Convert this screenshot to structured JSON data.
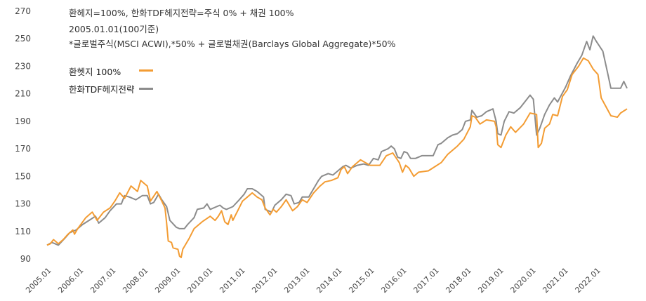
{
  "notes": [
    "환헤지=100%, 한화TDF헤지전략=주식 0% + 채권 100%",
    "2005.01.01(100기준)",
    "*글로벌주식(MSCI ACWI),*50% + 글로벌채권(Barclays Global Aggregate)*50%"
  ],
  "legend": [
    {
      "label": "환헷지 100%",
      "color": "#f39c33"
    },
    {
      "label": "한화TDF헤지전략",
      "color": "#8c8c8c"
    }
  ],
  "chart_data": {
    "type": "line",
    "title": "",
    "xlabel": "",
    "ylabel": "",
    "ylim": [
      90,
      270
    ],
    "yticks": [
      90,
      110,
      130,
      150,
      170,
      190,
      210,
      230,
      250,
      270
    ],
    "xlim": [
      2005.0,
      2022.95
    ],
    "xticks": [
      "2005.01",
      "2006.01",
      "2007.01",
      "2008.01",
      "2009.01",
      "2010.01",
      "2011.01",
      "2012.01",
      "2013.01",
      "2014.01",
      "2015.01",
      "2016.01",
      "2017.01",
      "2018.01",
      "2019.01",
      "2020.01",
      "2021.01",
      "2022.01"
    ],
    "grid": false,
    "legend_position": "top-left",
    "series": [
      {
        "name": "환헷지 100%",
        "color": "#f39c33",
        "points": [
          [
            2005.0,
            100
          ],
          [
            2005.1,
            101
          ],
          [
            2005.2,
            104
          ],
          [
            2005.35,
            101
          ],
          [
            2005.5,
            104
          ],
          [
            2005.65,
            108
          ],
          [
            2005.8,
            111
          ],
          [
            2005.85,
            108
          ],
          [
            2005.95,
            112
          ],
          [
            2006.2,
            120
          ],
          [
            2006.4,
            124
          ],
          [
            2006.55,
            118
          ],
          [
            2006.75,
            124
          ],
          [
            2006.95,
            127
          ],
          [
            2007.1,
            132
          ],
          [
            2007.25,
            138
          ],
          [
            2007.4,
            134
          ],
          [
            2007.6,
            143
          ],
          [
            2007.8,
            139
          ],
          [
            2007.9,
            147
          ],
          [
            2008.1,
            143
          ],
          [
            2008.2,
            132
          ],
          [
            2008.4,
            139
          ],
          [
            2008.55,
            132
          ],
          [
            2008.65,
            127
          ],
          [
            2008.7,
            116
          ],
          [
            2008.75,
            103
          ],
          [
            2008.85,
            102
          ],
          [
            2008.9,
            98
          ],
          [
            2009.05,
            97
          ],
          [
            2009.1,
            92
          ],
          [
            2009.15,
            91
          ],
          [
            2009.2,
            97
          ],
          [
            2009.4,
            105
          ],
          [
            2009.55,
            112
          ],
          [
            2009.8,
            117
          ],
          [
            2010.05,
            121
          ],
          [
            2010.2,
            118
          ],
          [
            2010.3,
            121
          ],
          [
            2010.4,
            125
          ],
          [
            2010.5,
            117
          ],
          [
            2010.6,
            115
          ],
          [
            2010.7,
            122
          ],
          [
            2010.75,
            118
          ],
          [
            2010.9,
            125
          ],
          [
            2011.05,
            132
          ],
          [
            2011.2,
            135
          ],
          [
            2011.35,
            138
          ],
          [
            2011.5,
            135
          ],
          [
            2011.65,
            133
          ],
          [
            2011.75,
            127
          ],
          [
            2011.9,
            122
          ],
          [
            2012.0,
            126
          ],
          [
            2012.1,
            124
          ],
          [
            2012.25,
            128
          ],
          [
            2012.4,
            133
          ],
          [
            2012.6,
            125
          ],
          [
            2012.75,
            128
          ],
          [
            2012.9,
            133
          ],
          [
            2013.05,
            131
          ],
          [
            2013.25,
            138
          ],
          [
            2013.45,
            143
          ],
          [
            2013.6,
            146
          ],
          [
            2013.8,
            147
          ],
          [
            2014.0,
            149
          ],
          [
            2014.1,
            155
          ],
          [
            2014.2,
            157
          ],
          [
            2014.3,
            152
          ],
          [
            2014.45,
            157
          ],
          [
            2014.6,
            160
          ],
          [
            2014.7,
            162
          ],
          [
            2014.85,
            160
          ],
          [
            2015.0,
            158
          ],
          [
            2015.3,
            158
          ],
          [
            2015.5,
            165
          ],
          [
            2015.7,
            167
          ],
          [
            2015.9,
            160
          ],
          [
            2016.0,
            153
          ],
          [
            2016.1,
            158
          ],
          [
            2016.2,
            156
          ],
          [
            2016.35,
            150
          ],
          [
            2016.5,
            153
          ],
          [
            2016.8,
            154
          ],
          [
            2017.0,
            157
          ],
          [
            2017.2,
            160
          ],
          [
            2017.4,
            166
          ],
          [
            2017.7,
            172
          ],
          [
            2017.9,
            177
          ],
          [
            2018.1,
            186
          ],
          [
            2018.15,
            194
          ],
          [
            2018.25,
            193
          ],
          [
            2018.4,
            188
          ],
          [
            2018.6,
            191
          ],
          [
            2018.85,
            190
          ],
          [
            2018.9,
            186
          ],
          [
            2018.95,
            173
          ],
          [
            2019.05,
            171
          ],
          [
            2019.2,
            180
          ],
          [
            2019.35,
            186
          ],
          [
            2019.5,
            182
          ],
          [
            2019.75,
            188
          ],
          [
            2019.95,
            196
          ],
          [
            2020.15,
            195
          ],
          [
            2020.2,
            171
          ],
          [
            2020.3,
            174
          ],
          [
            2020.4,
            185
          ],
          [
            2020.55,
            188
          ],
          [
            2020.65,
            195
          ],
          [
            2020.8,
            194
          ],
          [
            2020.95,
            208
          ],
          [
            2021.1,
            213
          ],
          [
            2021.25,
            224
          ],
          [
            2021.45,
            230
          ],
          [
            2021.6,
            236
          ],
          [
            2021.75,
            234
          ],
          [
            2021.9,
            228
          ],
          [
            2022.05,
            224
          ],
          [
            2022.15,
            207
          ],
          [
            2022.45,
            194
          ],
          [
            2022.65,
            193
          ],
          [
            2022.75,
            196
          ],
          [
            2022.95,
            199
          ]
        ]
      },
      {
        "name": "한화TDF헤지전략",
        "color": "#8c8c8c",
        "points": [
          [
            2005.0,
            100
          ],
          [
            2005.15,
            102
          ],
          [
            2005.25,
            101
          ],
          [
            2005.35,
            100
          ],
          [
            2005.55,
            105
          ],
          [
            2005.7,
            109
          ],
          [
            2005.9,
            111
          ],
          [
            2006.1,
            115
          ],
          [
            2006.3,
            118
          ],
          [
            2006.5,
            121
          ],
          [
            2006.6,
            116
          ],
          [
            2006.8,
            120
          ],
          [
            2006.95,
            125
          ],
          [
            2007.15,
            130
          ],
          [
            2007.3,
            130
          ],
          [
            2007.4,
            136
          ],
          [
            2007.55,
            135
          ],
          [
            2007.75,
            133
          ],
          [
            2007.95,
            136
          ],
          [
            2008.1,
            136
          ],
          [
            2008.2,
            130
          ],
          [
            2008.3,
            131
          ],
          [
            2008.45,
            137
          ],
          [
            2008.55,
            133
          ],
          [
            2008.7,
            128
          ],
          [
            2008.75,
            123
          ],
          [
            2008.8,
            118
          ],
          [
            2009.0,
            113
          ],
          [
            2009.1,
            112
          ],
          [
            2009.25,
            112
          ],
          [
            2009.35,
            115
          ],
          [
            2009.55,
            120
          ],
          [
            2009.65,
            126
          ],
          [
            2009.85,
            127
          ],
          [
            2009.95,
            130
          ],
          [
            2010.05,
            126
          ],
          [
            2010.35,
            129
          ],
          [
            2010.45,
            127
          ],
          [
            2010.55,
            126
          ],
          [
            2010.75,
            128
          ],
          [
            2010.95,
            133
          ],
          [
            2011.1,
            137
          ],
          [
            2011.2,
            141
          ],
          [
            2011.35,
            141
          ],
          [
            2011.5,
            139
          ],
          [
            2011.7,
            135
          ],
          [
            2011.75,
            126
          ],
          [
            2011.95,
            124
          ],
          [
            2012.05,
            129
          ],
          [
            2012.25,
            133
          ],
          [
            2012.4,
            137
          ],
          [
            2012.55,
            136
          ],
          [
            2012.65,
            130
          ],
          [
            2012.8,
            131
          ],
          [
            2012.9,
            135
          ],
          [
            2013.1,
            135
          ],
          [
            2013.25,
            141
          ],
          [
            2013.4,
            147
          ],
          [
            2013.5,
            150
          ],
          [
            2013.7,
            152
          ],
          [
            2013.85,
            151
          ],
          [
            2014.0,
            154
          ],
          [
            2014.15,
            157
          ],
          [
            2014.25,
            158
          ],
          [
            2014.4,
            156
          ],
          [
            2014.6,
            158
          ],
          [
            2014.8,
            159
          ],
          [
            2014.95,
            158
          ],
          [
            2015.1,
            163
          ],
          [
            2015.25,
            162
          ],
          [
            2015.35,
            168
          ],
          [
            2015.55,
            170
          ],
          [
            2015.65,
            172
          ],
          [
            2015.75,
            170
          ],
          [
            2015.85,
            164
          ],
          [
            2015.95,
            163
          ],
          [
            2016.05,
            168
          ],
          [
            2016.15,
            167
          ],
          [
            2016.25,
            163
          ],
          [
            2016.4,
            163
          ],
          [
            2016.6,
            165
          ],
          [
            2016.8,
            165
          ],
          [
            2016.95,
            165
          ],
          [
            2017.1,
            173
          ],
          [
            2017.2,
            174
          ],
          [
            2017.4,
            178
          ],
          [
            2017.55,
            180
          ],
          [
            2017.7,
            181
          ],
          [
            2017.85,
            184
          ],
          [
            2017.95,
            190
          ],
          [
            2018.1,
            191
          ],
          [
            2018.15,
            198
          ],
          [
            2018.3,
            193
          ],
          [
            2018.45,
            194
          ],
          [
            2018.6,
            197
          ],
          [
            2018.8,
            199
          ],
          [
            2018.9,
            190
          ],
          [
            2018.95,
            181
          ],
          [
            2019.05,
            180
          ],
          [
            2019.15,
            190
          ],
          [
            2019.3,
            197
          ],
          [
            2019.45,
            196
          ],
          [
            2019.65,
            200
          ],
          [
            2019.85,
            206
          ],
          [
            2019.95,
            209
          ],
          [
            2020.05,
            206
          ],
          [
            2020.15,
            180
          ],
          [
            2020.25,
            185
          ],
          [
            2020.4,
            195
          ],
          [
            2020.55,
            202
          ],
          [
            2020.7,
            207
          ],
          [
            2020.8,
            204
          ],
          [
            2021.05,
            215
          ],
          [
            2021.2,
            223
          ],
          [
            2021.4,
            232
          ],
          [
            2021.55,
            238
          ],
          [
            2021.7,
            248
          ],
          [
            2021.8,
            242
          ],
          [
            2021.9,
            252
          ],
          [
            2022.0,
            248
          ],
          [
            2022.2,
            241
          ],
          [
            2022.35,
            225
          ],
          [
            2022.45,
            214
          ],
          [
            2022.75,
            214
          ],
          [
            2022.85,
            219
          ],
          [
            2022.95,
            214
          ]
        ]
      }
    ]
  }
}
